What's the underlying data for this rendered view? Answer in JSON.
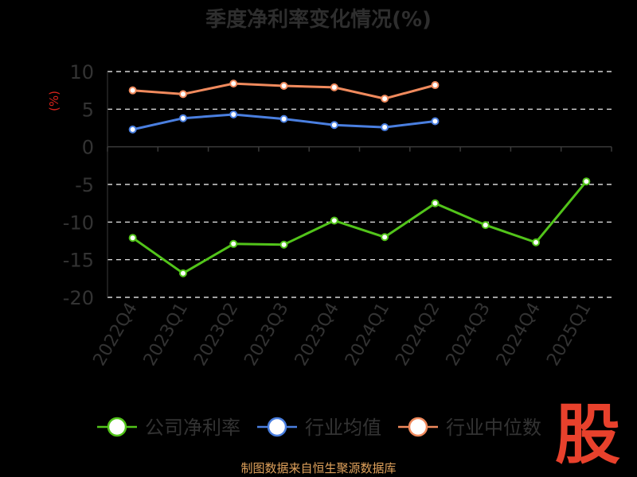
{
  "chart_data": {
    "type": "line",
    "title": "季度净利率变化情况(%)",
    "ylabel": "(%)",
    "xlabel": "",
    "ylim": [
      -20,
      10
    ],
    "yticks": [
      10,
      5,
      0,
      -5,
      -10,
      -15,
      -20
    ],
    "categories": [
      "2022Q4",
      "2023Q1",
      "2023Q2",
      "2023Q3",
      "2023Q4",
      "2024Q1",
      "2024Q2",
      "2024Q3",
      "2024Q4",
      "2025Q1"
    ],
    "grid": true,
    "legend_position": "bottom",
    "series": [
      {
        "name": "公司净利率",
        "color": "#52c41a",
        "values": [
          -12.1,
          -16.8,
          -12.9,
          -13.0,
          -9.8,
          -12.0,
          -7.5,
          -10.4,
          -12.7,
          -4.6
        ]
      },
      {
        "name": "行业均值",
        "color": "#4a7fe0",
        "values": [
          2.3,
          3.8,
          4.3,
          3.7,
          2.9,
          2.6,
          3.4,
          null,
          null,
          null
        ]
      },
      {
        "name": "行业中位数",
        "color": "#f08a5d",
        "values": [
          7.5,
          7.0,
          8.4,
          8.1,
          7.9,
          6.4,
          8.2,
          null,
          null,
          null
        ]
      }
    ]
  },
  "footer": {
    "source": "制图数据来自恒生聚源数据库"
  },
  "logo": {
    "text": "股",
    "color": "#e8412c"
  }
}
